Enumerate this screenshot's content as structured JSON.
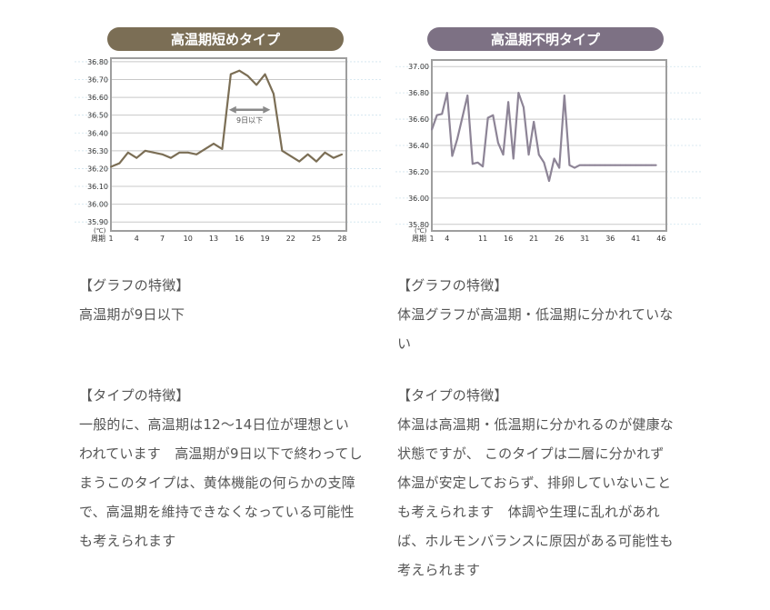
{
  "charts": {
    "left": {
      "title": "高温期短めタイプ",
      "colors": {
        "pill": "#7b6e55",
        "line": "#7b6e55",
        "arrow": "#8a8a8a"
      },
      "annotation": "9日以下",
      "cycle_label": "周期",
      "unit_label": "(℃)",
      "y_tick_labels": [
        "36.80",
        "36.70",
        "36.60",
        "36.50",
        "36.40",
        "36.30",
        "36.20",
        "36.10",
        "36.00",
        "35.90"
      ],
      "x_tick_labels": [
        "1",
        "4",
        "7",
        "10",
        "13",
        "16",
        "19",
        "22",
        "25",
        "28"
      ]
    },
    "right": {
      "title": "高温期不明タイプ",
      "colors": {
        "pill": "#7d7184",
        "line": "#8d8496"
      },
      "cycle_label": "周期",
      "unit_label": "(℃)",
      "y_tick_labels": [
        "37.00",
        "36.80",
        "36.60",
        "36.40",
        "36.20",
        "36.00",
        "35.80"
      ],
      "x_tick_labels": [
        "1",
        "4",
        "11",
        "16",
        "21",
        "26",
        "31",
        "36",
        "41",
        "46"
      ]
    }
  },
  "chart_data": [
    {
      "type": "line",
      "title": "高温期短めタイプ",
      "xlabel": "周期",
      "ylabel": "(℃)",
      "ylim": [
        35.85,
        36.82
      ],
      "xlim": [
        1,
        28.5
      ],
      "grid": true,
      "annotation": "9日以下",
      "x_ticks": [
        1,
        4,
        7,
        10,
        13,
        16,
        19,
        22,
        25,
        28
      ],
      "x": [
        1,
        2,
        3,
        4,
        5,
        7,
        8,
        9,
        10,
        11,
        12,
        13,
        14,
        15,
        16,
        17,
        18,
        19,
        20,
        21,
        22,
        23,
        24,
        25,
        26,
        27,
        28
      ],
      "y": [
        36.21,
        36.23,
        36.29,
        36.26,
        36.3,
        36.28,
        36.26,
        36.29,
        36.29,
        36.28,
        36.31,
        36.34,
        36.31,
        36.73,
        36.75,
        36.72,
        36.67,
        36.73,
        36.62,
        36.3,
        36.27,
        36.24,
        36.28,
        36.24,
        36.29,
        36.26,
        36.28
      ]
    },
    {
      "type": "line",
      "title": "高温期不明タイプ",
      "xlabel": "周期",
      "ylabel": "(℃)",
      "ylim": [
        35.75,
        37.05
      ],
      "xlim": [
        1,
        47
      ],
      "grid": true,
      "x_ticks": [
        1,
        4,
        11,
        16,
        21,
        26,
        31,
        36,
        41,
        46
      ],
      "x": [
        1,
        2,
        3,
        4,
        5,
        6,
        8,
        9,
        10,
        11,
        12,
        13,
        14,
        15,
        16,
        17,
        18,
        19,
        20,
        21,
        22,
        23,
        24,
        25,
        26,
        27,
        28,
        29,
        30,
        31,
        32,
        33,
        34,
        35,
        36,
        37,
        38,
        39,
        40,
        41,
        42,
        43,
        44,
        45
      ],
      "y": [
        36.52,
        36.63,
        36.64,
        36.8,
        36.32,
        36.45,
        36.78,
        36.26,
        36.27,
        36.24,
        36.61,
        36.63,
        36.42,
        36.33,
        36.73,
        36.3,
        36.8,
        36.69,
        36.33,
        36.58,
        36.33,
        36.27,
        36.13,
        36.3,
        36.23,
        36.78,
        36.25,
        36.23,
        36.25,
        36.25,
        36.25,
        36.25,
        36.25,
        36.25,
        36.25,
        36.25,
        36.25,
        36.25,
        36.25,
        36.25,
        36.25,
        36.25,
        36.25,
        36.25
      ]
    }
  ],
  "left_text": {
    "graph_heading": "【グラフの特徴】",
    "graph_body": "高温期が9日以下",
    "type_heading": "【タイプの特徴】",
    "type_lines": [
      "一般的に、高温期は12～14日位が理想とい",
      "われています　高温期が9日以下で終わってし",
      "まうこのタイプは、黄体機能の何らかの支障",
      "で、高温期を維持できなくなっている可能性",
      "も考えられます"
    ]
  },
  "right_text": {
    "graph_heading": "【グラフの特徴】",
    "graph_lines": [
      "体温グラフが高温期・低温期に分かれていな",
      "い"
    ],
    "type_heading": "【タイプの特徴】",
    "type_lines": [
      "体温は高温期・低温期に分かれるのが健康な",
      "状態ですが、 このタイプは二層に分かれず",
      "体温が安定しておらず、排卵していないこと",
      "も考えられます　体調や生理に乱れがあれ",
      "ば、ホルモンバランスに原因がある可能性も",
      "考えられます"
    ]
  }
}
